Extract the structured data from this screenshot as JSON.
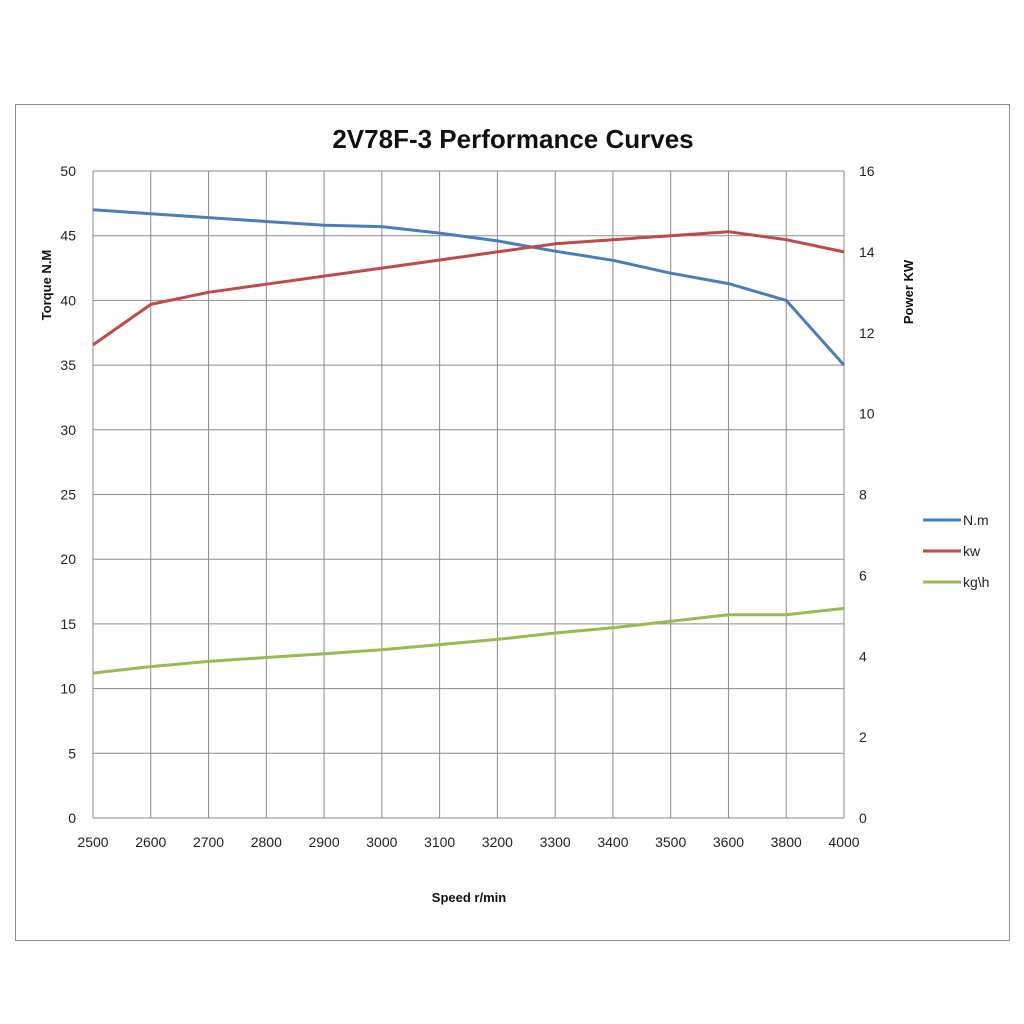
{
  "chart_data": {
    "type": "line",
    "title": "2V78F-3 Performance Curves",
    "xlabel": "Speed r/min",
    "ylabel_left": "Torque N.M",
    "ylabel_right": "Power KW",
    "categories": [
      "2500",
      "2600",
      "2700",
      "2800",
      "2900",
      "3000",
      "3100",
      "3200",
      "3300",
      "3400",
      "3500",
      "3600",
      "3800",
      "4000"
    ],
    "ylim_left": [
      0,
      50
    ],
    "yticks_left": [
      0,
      5,
      10,
      15,
      20,
      25,
      30,
      35,
      40,
      45,
      50
    ],
    "ylim_right": [
      0,
      16
    ],
    "yticks_right": [
      0,
      2,
      4,
      6,
      8,
      10,
      12,
      14,
      16
    ],
    "grid": true,
    "legend_position": "right",
    "series": [
      {
        "name": "N.m",
        "axis": "left",
        "color": "#4a7ebb",
        "values": [
          47.0,
          46.7,
          46.4,
          46.1,
          45.8,
          45.7,
          45.2,
          44.6,
          43.8,
          43.1,
          42.1,
          41.3,
          40.0,
          35.0
        ]
      },
      {
        "name": "kw",
        "axis": "right",
        "color": "#be4b48",
        "values": [
          11.7,
          12.7,
          13.0,
          13.2,
          13.4,
          13.6,
          13.8,
          14.0,
          14.2,
          14.3,
          14.4,
          14.5,
          14.3,
          14.0
        ]
      },
      {
        "name": "kg\\h",
        "axis": "left",
        "color": "#98b954",
        "values": [
          11.2,
          11.7,
          12.1,
          12.4,
          12.7,
          13.0,
          13.4,
          13.8,
          14.3,
          14.7,
          15.2,
          15.7,
          15.7,
          16.2
        ]
      }
    ]
  }
}
